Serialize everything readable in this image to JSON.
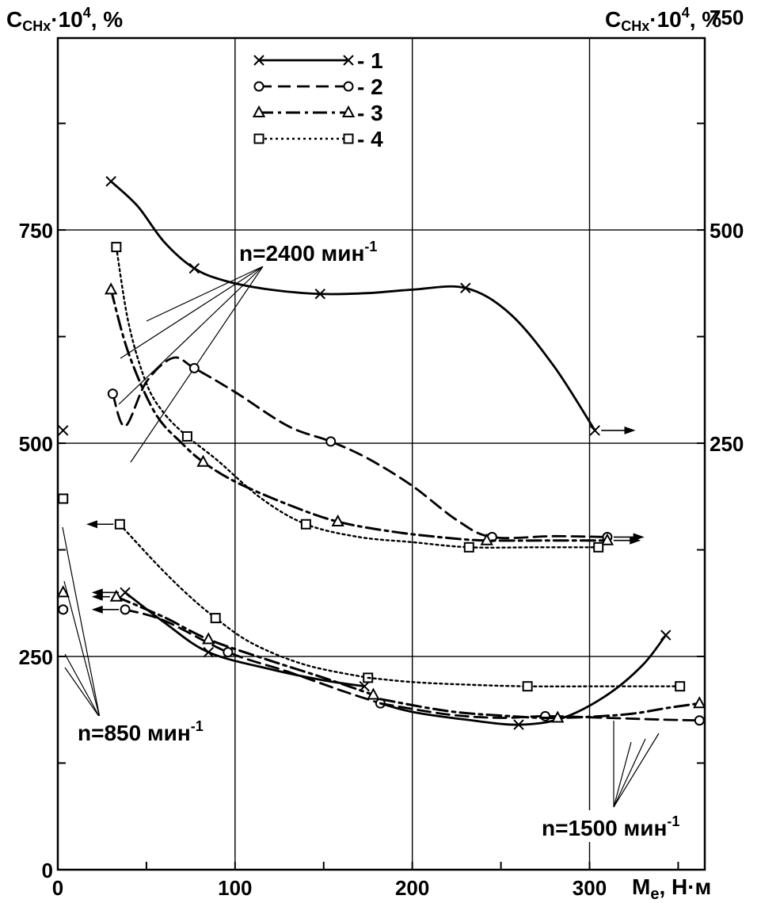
{
  "chart_data": {
    "type": "line",
    "y_left_label": {
      "main": "C",
      "sub": "CHx",
      "mid": "·10",
      "sup": "4",
      "tail": ", %"
    },
    "y_right_label": {
      "main": "C",
      "sub": "CHx",
      "mid": "·10",
      "sup": "4",
      "tail": ", %"
    },
    "x_label": {
      "main": "M",
      "sub": "e",
      "tail": ", Н·м"
    },
    "xlim": [
      0,
      365
    ],
    "ylim_left": [
      0,
      975
    ],
    "ylim_right": [
      -250,
      725
    ],
    "x_ticks": [
      0,
      100,
      200,
      300
    ],
    "x_tick_labels": [
      "0",
      "100",
      "200",
      "300"
    ],
    "y_left_ticks": [
      0,
      250,
      500,
      750
    ],
    "y_left_tick_labels": [
      "0",
      "250",
      "500",
      "750"
    ],
    "y_right_ticks": [
      250,
      500,
      750
    ],
    "y_right_tick_labels": [
      "250",
      "500",
      "750"
    ],
    "grid": true,
    "legend_position": "top-center",
    "legend": [
      {
        "id": "1",
        "label": "1",
        "marker": "x",
        "dash": "solid"
      },
      {
        "id": "2",
        "label": "2",
        "marker": "circle",
        "dash": "dashed"
      },
      {
        "id": "3",
        "label": "3",
        "marker": "triangle",
        "dash": "dashdot"
      },
      {
        "id": "4",
        "label": "4",
        "marker": "square",
        "dash": "dotted"
      }
    ],
    "annotations": [
      {
        "id": "n2400",
        "text": "n=2400 мин",
        "sup": "-1"
      },
      {
        "id": "n850",
        "text": "n=850 мин",
        "sup": "-1"
      },
      {
        "id": "n1500",
        "text": "n=1500 мин",
        "sup": "-1"
      }
    ],
    "series": [
      {
        "style": 1,
        "group": "n2400",
        "axis": "right",
        "x": [
          30,
          77,
          148,
          230,
          303
        ],
        "y": [
          557,
          455,
          425,
          432,
          265
        ],
        "curve_x": [
          30,
          45,
          60,
          77,
          95,
          120,
          148,
          175,
          200,
          230,
          255,
          280,
          303
        ],
        "curve_y": [
          557,
          528,
          486,
          455,
          440,
          430,
          425,
          426,
          430,
          432,
          402,
          340,
          265
        ],
        "arrow_to": 325
      },
      {
        "style": 2,
        "group": "n2400",
        "axis": "right",
        "x": [
          31,
          77,
          154,
          245,
          310
        ],
        "y": [
          308,
          338,
          252,
          140,
          140
        ],
        "curve_x": [
          31,
          38,
          50,
          65,
          77,
          100,
          130,
          154,
          175,
          200,
          225,
          245,
          280,
          310
        ],
        "curve_y": [
          308,
          270,
          322,
          350,
          338,
          310,
          270,
          252,
          232,
          200,
          160,
          140,
          141,
          140
        ],
        "arrow_to": 330
      },
      {
        "style": 3,
        "group": "n2400",
        "axis": "right",
        "x": [
          30,
          82,
          158,
          242,
          310
        ],
        "y": [
          430,
          228,
          158,
          136,
          136
        ],
        "curve_x": [
          30,
          40,
          55,
          70,
          82,
          100,
          130,
          158,
          190,
          220,
          242,
          280,
          310
        ],
        "curve_y": [
          430,
          355,
          285,
          250,
          228,
          205,
          178,
          158,
          146,
          139,
          136,
          136,
          136
        ],
        "arrow_to": 328
      },
      {
        "style": 4,
        "group": "n2400",
        "axis": "right",
        "x": [
          33,
          73,
          140,
          232,
          305
        ],
        "y": [
          480,
          258,
          155,
          128,
          128
        ],
        "curve_x": [
          33,
          40,
          50,
          60,
          73,
          90,
          115,
          140,
          170,
          200,
          232,
          270,
          305
        ],
        "curve_y": [
          480,
          390,
          320,
          285,
          258,
          230,
          185,
          155,
          140,
          134,
          128,
          128,
          128
        ],
        "arrow_to": null
      },
      {
        "style": 1,
        "group": "n850",
        "axis": "left",
        "x": [
          3,
          38,
          85,
          173
        ],
        "y": [
          515,
          325,
          255,
          215
        ],
        "curve_x": [
          38,
          60,
          85,
          120,
          150,
          173
        ],
        "curve_y": [
          325,
          290,
          255,
          235,
          222,
          215
        ],
        "arrow_to": 20
      },
      {
        "style": 2,
        "group": "n850",
        "axis": "left",
        "x": [
          3,
          38,
          96,
          182
        ],
        "y": [
          305,
          305,
          255,
          195
        ],
        "curve_x": [
          38,
          60,
          96,
          130,
          160,
          182
        ],
        "curve_y": [
          305,
          292,
          255,
          232,
          210,
          195
        ],
        "arrow_to": 20
      },
      {
        "style": 3,
        "group": "n850",
        "axis": "left",
        "x": [
          3,
          33,
          85,
          178
        ],
        "y": [
          325,
          320,
          270,
          205
        ],
        "curve_x": [
          33,
          60,
          85,
          120,
          150,
          178
        ],
        "curve_y": [
          320,
          296,
          270,
          245,
          225,
          205
        ],
        "arrow_to": 20
      },
      {
        "style": 4,
        "group": "n850",
        "axis": "left",
        "x": [
          3,
          35,
          89,
          175
        ],
        "y": [
          435,
          405,
          295,
          225
        ],
        "curve_x": [
          35,
          55,
          72,
          89,
          110,
          140,
          175
        ],
        "curve_y": [
          405,
          360,
          325,
          295,
          265,
          240,
          225
        ],
        "arrow_to": 17
      },
      {
        "style": 1,
        "group": "n1500",
        "axis": "left",
        "x": [
          260,
          343
        ],
        "y": [
          170,
          275
        ],
        "curve_x": [
          182,
          200,
          230,
          260,
          285,
          310,
          330,
          343
        ],
        "curve_y": [
          195,
          185,
          176,
          170,
          178,
          205,
          240,
          275
        ],
        "arrow_to": null
      },
      {
        "style": 2,
        "group": "n1500",
        "axis": "left",
        "x": [
          275,
          362
        ],
        "y": [
          180,
          175
        ],
        "curve_x": [
          182,
          220,
          250,
          275,
          310,
          340,
          362
        ],
        "curve_y": [
          195,
          182,
          178,
          180,
          178,
          176,
          175
        ],
        "arrow_to": null
      },
      {
        "style": 3,
        "group": "n1500",
        "axis": "left",
        "x": [
          282,
          362
        ],
        "y": [
          178,
          195
        ],
        "curve_x": [
          182,
          220,
          255,
          282,
          320,
          345,
          362
        ],
        "curve_y": [
          200,
          186,
          180,
          178,
          182,
          190,
          195
        ],
        "arrow_to": null
      },
      {
        "style": 4,
        "group": "n1500",
        "axis": "left",
        "x": [
          265,
          351
        ],
        "y": [
          215,
          215
        ],
        "curve_x": [
          175,
          200,
          230,
          265,
          310,
          351
        ],
        "curve_y": [
          225,
          220,
          217,
          215,
          215,
          215
        ],
        "arrow_to": null
      }
    ]
  }
}
